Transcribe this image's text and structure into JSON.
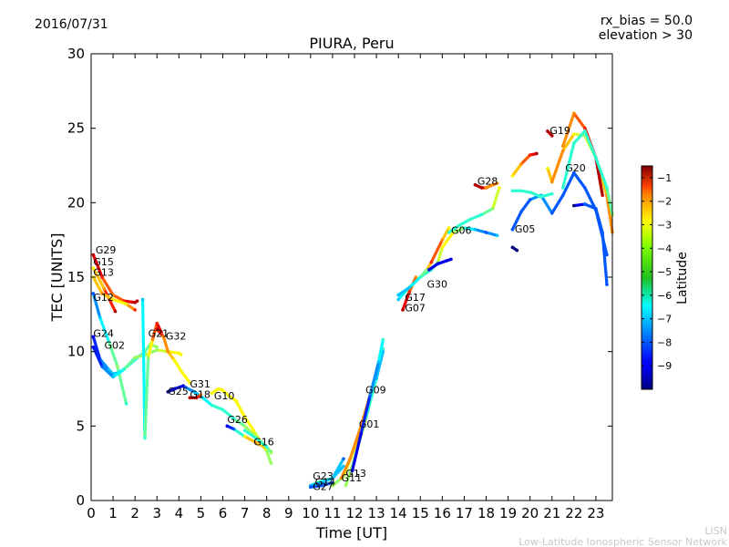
{
  "header": {
    "date": "2016/07/31",
    "bias_line": "rx_bias = 50.0",
    "elevation_line": "elevation > 30"
  },
  "footer": {
    "line1": "LISN",
    "line2": "Low-Latitude Ionospheric Sensor Network"
  },
  "chart_data": {
    "type": "scatter",
    "title": "PIURA, Peru",
    "xlabel": "Time [UT]",
    "ylabel": "TEC [UNITS]",
    "xlim": [
      0,
      23.75
    ],
    "ylim": [
      0,
      30
    ],
    "xticks": [
      0,
      1,
      2,
      3,
      4,
      5,
      6,
      7,
      8,
      9,
      10,
      11,
      12,
      13,
      14,
      15,
      16,
      17,
      18,
      19,
      20,
      21,
      22,
      23
    ],
    "yticks": [
      0,
      5,
      10,
      15,
      20,
      25,
      30
    ],
    "colorbar": {
      "label": "Latitude",
      "range": [
        -10,
        -0.5
      ],
      "ticks": [
        -1,
        -2,
        -3,
        -4,
        -5,
        -6,
        -7,
        -8,
        -9
      ],
      "colormap": "jet"
    },
    "series": [
      {
        "name": "G29",
        "label_at": [
          0.2,
          16.6
        ],
        "x": [
          0.1,
          0.5,
          1.0,
          1.5,
          2.0,
          2.1
        ],
        "y": [
          16.5,
          15.0,
          13.8,
          13.4,
          13.3,
          13.4
        ],
        "lat": [
          -1,
          -2,
          -3,
          -2,
          -1,
          -1
        ]
      },
      {
        "name": "G15",
        "label_at": [
          0.1,
          15.8
        ],
        "x": [
          0.1,
          0.6,
          1.1
        ],
        "y": [
          15.6,
          14.2,
          12.7
        ],
        "lat": [
          -4,
          -3,
          -1
        ]
      },
      {
        "name": "G13",
        "label_at": [
          0.1,
          15.1
        ],
        "x": [
          0.1,
          0.5,
          1.0,
          1.6,
          2.0
        ],
        "y": [
          15.0,
          13.9,
          13.5,
          13.2,
          12.8
        ],
        "lat": [
          -4,
          -3,
          -4,
          -4,
          -2
        ]
      },
      {
        "name": "G12",
        "label_at": [
          0.1,
          13.4
        ],
        "x": [
          0.1,
          0.4,
          0.8,
          1.2,
          1.6
        ],
        "y": [
          13.9,
          12.3,
          10.7,
          9.0,
          6.5
        ],
        "lat": [
          -8,
          -7,
          -6,
          -5,
          -6
        ]
      },
      {
        "name": "G24",
        "label_at": [
          0.1,
          11.0
        ],
        "x": [
          0.1,
          0.4,
          0.8,
          1.0,
          1.3,
          1.8,
          2.2,
          2.4,
          2.7,
          3.0
        ],
        "y": [
          11.0,
          9.5,
          8.8,
          8.5,
          8.6,
          9.2,
          9.7,
          9.9,
          10.5,
          10.3
        ],
        "lat": [
          -9,
          -8,
          -7,
          -7,
          -7,
          -6,
          -6,
          -6,
          -5,
          -5
        ]
      },
      {
        "name": "G02",
        "label_at": [
          0.6,
          10.2
        ],
        "x": [
          0.1,
          0.5,
          1.0,
          1.5,
          2.0,
          2.5,
          3.0,
          3.5,
          4.0,
          4.1
        ],
        "y": [
          10.3,
          9.0,
          8.3,
          8.8,
          9.6,
          9.8,
          10.1,
          10.0,
          9.9,
          9.8
        ],
        "lat": [
          -9,
          -8,
          -7,
          -6,
          -5,
          -5,
          -5,
          -4,
          -4,
          -4
        ]
      },
      {
        "name": "G21",
        "label_at": [
          2.6,
          11.0
        ],
        "x": [
          2.35,
          2.45,
          2.6,
          2.8,
          3.0,
          3.2
        ],
        "y": [
          13.5,
          4.2,
          9.6,
          10.8,
          11.9,
          11.3
        ],
        "lat": [
          -7,
          -6,
          -5,
          -3,
          -2,
          -1
        ]
      },
      {
        "name": "G32",
        "label_at": [
          3.4,
          10.8
        ],
        "x": [
          3.0,
          3.3,
          3.5,
          3.8,
          4.1,
          4.5
        ],
        "y": [
          11.5,
          11.0,
          10.0,
          9.4,
          8.7,
          7.9
        ],
        "lat": [
          -1,
          -3,
          -3,
          -4,
          -4,
          -4
        ]
      },
      {
        "name": "G25",
        "label_at": [
          3.5,
          7.1
        ],
        "x": [
          3.5,
          3.8,
          4.2
        ],
        "y": [
          7.3,
          7.5,
          7.7
        ],
        "lat": [
          -10,
          -9,
          -9
        ]
      },
      {
        "name": "G31",
        "label_at": [
          4.5,
          7.6
        ],
        "x": [
          4.3,
          4.7,
          5.0,
          5.5,
          6.0,
          6.5,
          7.0,
          7.5,
          8.0,
          8.2
        ],
        "y": [
          7.6,
          7.3,
          7.0,
          6.4,
          6.1,
          5.5,
          5.0,
          4.3,
          3.6,
          3.2
        ],
        "lat": [
          -8,
          -7,
          -7,
          -6,
          -6,
          -6,
          -5,
          -5,
          -5,
          -5
        ]
      },
      {
        "name": "G18",
        "label_at": [
          4.5,
          6.9
        ],
        "x": [
          4.5,
          4.8,
          5.0
        ],
        "y": [
          6.9,
          6.9,
          7.1
        ],
        "lat": [
          -1,
          -1,
          -3
        ]
      },
      {
        "name": "G10",
        "label_at": [
          5.6,
          6.8
        ],
        "x": [
          5.5,
          5.8,
          6.0,
          6.3,
          6.6,
          7.0,
          7.4,
          8.0,
          8.2
        ],
        "y": [
          7.2,
          7.5,
          7.4,
          7.0,
          6.7,
          5.6,
          4.7,
          3.3,
          2.5
        ],
        "lat": [
          -4,
          -4,
          -4,
          -4,
          -4,
          -4,
          -4,
          -5,
          -5
        ]
      },
      {
        "name": "G26",
        "label_at": [
          6.2,
          5.2
        ],
        "x": [
          6.2,
          6.5,
          7.0,
          7.5,
          8.0,
          8.2
        ],
        "y": [
          5.0,
          4.8,
          4.3,
          3.9,
          3.5,
          3.3
        ],
        "lat": [
          -9,
          -8,
          -4,
          -3,
          -4,
          -5
        ]
      },
      {
        "name": "G16",
        "label_at": [
          7.4,
          3.7
        ],
        "x": [
          7.0,
          7.5,
          8.0,
          8.2
        ],
        "y": [
          4.7,
          4.2,
          3.6,
          3.2
        ],
        "lat": [
          -6,
          -6,
          -6,
          -5
        ]
      },
      {
        "name": "G23",
        "label_at": [
          10.1,
          1.4
        ],
        "x": [
          10.0,
          10.5,
          11.0,
          11.5
        ],
        "y": [
          1.0,
          1.3,
          1.5,
          2.8
        ],
        "lat": [
          -6,
          -6,
          -6,
          -8
        ]
      },
      {
        "name": "G14",
        "label_at": [
          10.2,
          1.0
        ],
        "x": [
          10.0,
          10.5,
          11.0,
          11.5
        ],
        "y": [
          1.0,
          1.2,
          1.5,
          2.3
        ],
        "lat": [
          -7,
          -7,
          -7,
          -7
        ]
      },
      {
        "name": "G27",
        "label_at": [
          10.1,
          0.7
        ],
        "x": [
          10.0,
          10.5,
          11.0
        ],
        "y": [
          0.9,
          1.0,
          1.2
        ],
        "lat": [
          -8,
          -8,
          -8
        ]
      },
      {
        "name": "G11",
        "label_at": [
          11.4,
          1.3
        ],
        "x": [
          11.0,
          11.5,
          12.0,
          12.5,
          13.0,
          13.3
        ],
        "y": [
          1.0,
          1.6,
          3.5,
          6.0,
          8.5,
          10.2
        ],
        "lat": [
          -5,
          -5,
          -4,
          -4,
          -5,
          -6
        ]
      },
      {
        "name": "G13",
        "label_at": [
          11.6,
          1.6
        ],
        "x": [
          11.4,
          11.8,
          12.3,
          12.8,
          13.2
        ],
        "y": [
          1.5,
          2.8,
          5.0,
          7.5,
          9.5
        ],
        "lat": [
          -3,
          -3,
          -3,
          -3,
          -3
        ]
      },
      {
        "name": "G01",
        "label_at": [
          12.2,
          4.9
        ],
        "x": [
          11.6,
          12.0,
          12.5,
          13.0,
          13.3
        ],
        "y": [
          1.0,
          2.8,
          5.4,
          8.2,
          10.0
        ],
        "lat": [
          -5,
          -5,
          -5,
          -7,
          -7
        ]
      },
      {
        "name": "G09",
        "label_at": [
          12.5,
          7.2
        ],
        "x": [
          11.9,
          12.3,
          12.7,
          13.1,
          13.3
        ],
        "y": [
          2.0,
          4.5,
          7.0,
          9.3,
          10.8
        ],
        "lat": [
          -9,
          -9,
          -8,
          -7,
          -6
        ]
      },
      {
        "name": "G17",
        "label_at": [
          14.3,
          13.4
        ],
        "x": [
          14.0,
          14.3,
          14.7,
          15.0,
          15.5
        ],
        "y": [
          13.5,
          14.0,
          14.6,
          15.0,
          15.5
        ],
        "lat": [
          -7,
          -6,
          -6,
          -6,
          -6
        ]
      },
      {
        "name": "G07",
        "label_at": [
          14.3,
          12.7
        ],
        "x": [
          14.2,
          14.5,
          14.8
        ],
        "y": [
          12.8,
          14.0,
          15.0
        ],
        "lat": [
          -1,
          -2,
          -3
        ]
      },
      {
        "name": "G30",
        "label_at": [
          15.3,
          14.3
        ],
        "x": [
          14.0,
          14.5,
          15.0,
          15.3,
          15.5,
          16.0,
          16.3
        ],
        "y": [
          13.8,
          14.3,
          15.0,
          15.5,
          16.0,
          17.5,
          18.3
        ],
        "lat": [
          -7,
          -7,
          -6,
          -5,
          -2,
          -3,
          -4
        ]
      },
      {
        "name": "G06",
        "label_at": [
          16.4,
          17.9
        ],
        "x": [
          15.5,
          15.8,
          16.0,
          16.5,
          17.0,
          17.5,
          18.0,
          18.5
        ],
        "y": [
          15.5,
          16.0,
          17.0,
          18.0,
          18.3,
          18.2,
          18.0,
          17.8
        ],
        "lat": [
          -6,
          -5,
          -4,
          -4,
          -6,
          -7,
          -8,
          -7
        ]
      },
      {
        "name": "G06",
        "label_at": [
          16.4,
          17.9
        ],
        "x": [
          15.4,
          15.8,
          16.2,
          16.4
        ],
        "y": [
          15.5,
          15.9,
          16.1,
          16.2
        ],
        "lat": [
          -9,
          -9,
          -9,
          -9
        ]
      },
      {
        "name": "G06",
        "label_at": [
          16.4,
          17.9
        ],
        "x": [
          16.3,
          16.8,
          17.3,
          17.8,
          18.3,
          18.6
        ],
        "y": [
          18.0,
          18.5,
          18.9,
          19.2,
          19.6,
          21.0
        ],
        "lat": [
          -6,
          -6,
          -6,
          -6,
          -5,
          -4
        ]
      },
      {
        "name": "G28",
        "label_at": [
          17.6,
          21.2
        ],
        "x": [
          17.5,
          17.8,
          18.0,
          18.3,
          18.5
        ],
        "y": [
          21.2,
          21.0,
          21.0,
          21.2,
          21.3
        ],
        "lat": [
          -1,
          -1,
          -3,
          -3,
          -3
        ]
      },
      {
        "name": "G05",
        "label_at": [
          19.3,
          18.0
        ],
        "x": [
          19.2,
          19.6,
          20.0,
          20.5,
          21.0,
          21.5,
          22.0,
          22.5,
          23.0,
          23.5
        ],
        "y": [
          18.2,
          19.4,
          20.2,
          20.5,
          19.3,
          20.5,
          22.0,
          21.0,
          19.5,
          16.5
        ],
        "lat": [
          -8,
          -8,
          -8,
          -7,
          -8,
          -8,
          -8,
          -8,
          -8,
          -8
        ]
      },
      {
        "name": "G05",
        "label_at": [
          19.3,
          18.0
        ],
        "x": [
          19.2,
          19.4
        ],
        "y": [
          17.0,
          16.8
        ],
        "lat": [
          -10,
          -10
        ]
      },
      {
        "name": "G05",
        "label_at": [
          19.3,
          18.0
        ],
        "x": [
          19.2,
          19.6,
          20.0,
          20.3
        ],
        "y": [
          21.8,
          22.6,
          23.2,
          23.3
        ],
        "lat": [
          -4,
          -3,
          -2,
          -1
        ]
      },
      {
        "name": "G05",
        "label_at": [
          19.3,
          18.0
        ],
        "x": [
          19.2,
          19.6,
          20.0,
          20.5,
          21.0
        ],
        "y": [
          20.8,
          20.8,
          20.7,
          20.4,
          20.6
        ],
        "lat": [
          -6,
          -6,
          -6,
          -6,
          -6
        ]
      },
      {
        "name": "G19",
        "label_at": [
          20.9,
          24.6
        ],
        "x": [
          20.8,
          21.0
        ],
        "y": [
          24.8,
          24.5
        ],
        "lat": [
          -1,
          -1
        ]
      },
      {
        "name": "G20",
        "label_at": [
          21.6,
          22.1
        ],
        "x": [
          20.8,
          21.0,
          21.5,
          22.0,
          22.5,
          23.0,
          23.5,
          23.75
        ],
        "y": [
          22.3,
          21.4,
          23.5,
          24.6,
          24.5,
          23.0,
          20.5,
          18.0
        ],
        "lat": [
          -4,
          -3,
          -3,
          -4,
          -5,
          -4,
          -3,
          -3
        ]
      },
      {
        "name": "G20",
        "label_at": [
          21.6,
          22.1
        ],
        "x": [
          21.5,
          22.0,
          22.5,
          23.0,
          23.3
        ],
        "y": [
          23.8,
          26.0,
          25.0,
          23.0,
          20.5
        ],
        "lat": [
          -3,
          -3,
          -2,
          -1,
          -1
        ]
      },
      {
        "name": "G20",
        "label_at": [
          21.6,
          22.1
        ],
        "x": [
          21.5,
          22.0,
          22.5,
          23.0,
          23.5,
          23.75
        ],
        "y": [
          21.0,
          24.0,
          24.8,
          23.0,
          21.0,
          19.2
        ],
        "lat": [
          -6,
          -6,
          -6,
          -6,
          -6,
          -5
        ]
      },
      {
        "name": "G20",
        "label_at": [
          21.6,
          22.1
        ],
        "x": [
          22.0,
          22.5,
          23.0,
          23.3,
          23.5
        ],
        "y": [
          19.8,
          19.9,
          19.6,
          18.0,
          14.5
        ],
        "lat": [
          -10,
          -8,
          -8,
          -8,
          -8
        ]
      }
    ]
  }
}
